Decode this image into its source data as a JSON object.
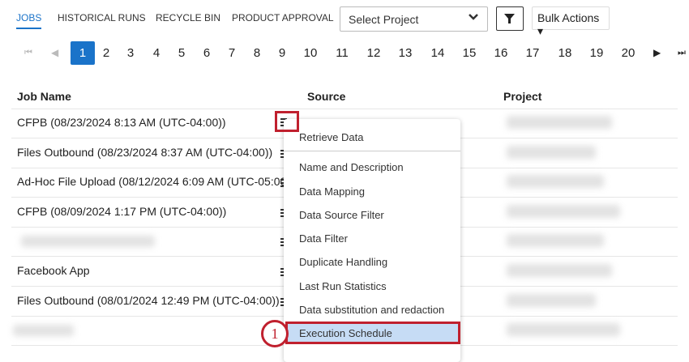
{
  "tabs": [
    {
      "label": "JOBS",
      "active": true
    },
    {
      "label": "HISTORICAL RUNS"
    },
    {
      "label": "RECYCLE BIN"
    },
    {
      "label": "PRODUCT APPROVAL"
    }
  ],
  "project_select": {
    "placeholder": "Select Project"
  },
  "filter_icon": "funnel-icon",
  "bulk_actions": "Bulk Actions ▾",
  "pagination": {
    "current": "1",
    "pages": [
      "1",
      "2",
      "3",
      "4",
      "5",
      "6",
      "7",
      "8",
      "9",
      "10",
      "11",
      "12",
      "13",
      "14",
      "15",
      "16",
      "17",
      "18",
      "19",
      "20"
    ]
  },
  "table": {
    "headers": [
      "Job Name",
      "Source",
      "Project"
    ],
    "rows": [
      "CFPB (08/23/2024 8:13 AM (UTC-04:00))",
      "Files Outbound (08/23/2024 8:37 AM (UTC-04:00))",
      "Ad-Hoc File Upload (08/12/2024 6:09 AM (UTC-05:00))",
      "CFPB (08/09/2024 1:17 PM (UTC-04:00))",
      "",
      "Facebook App",
      "Files Outbound (08/01/2024 12:49 PM (UTC-04:00))",
      ""
    ]
  },
  "menu": {
    "items": [
      "Retrieve Data",
      "Name and Description",
      "Data Mapping",
      "Data Source Filter",
      "Data Filter",
      "Duplicate Handling",
      "Last Run Statistics",
      "Data substitution and redaction",
      "Execution Schedule"
    ],
    "highlighted": "Execution Schedule"
  },
  "callout": "1",
  "colors": {
    "accent": "#1a73c9",
    "highlight": "#c6dcf5",
    "callout": "#c0202e"
  }
}
